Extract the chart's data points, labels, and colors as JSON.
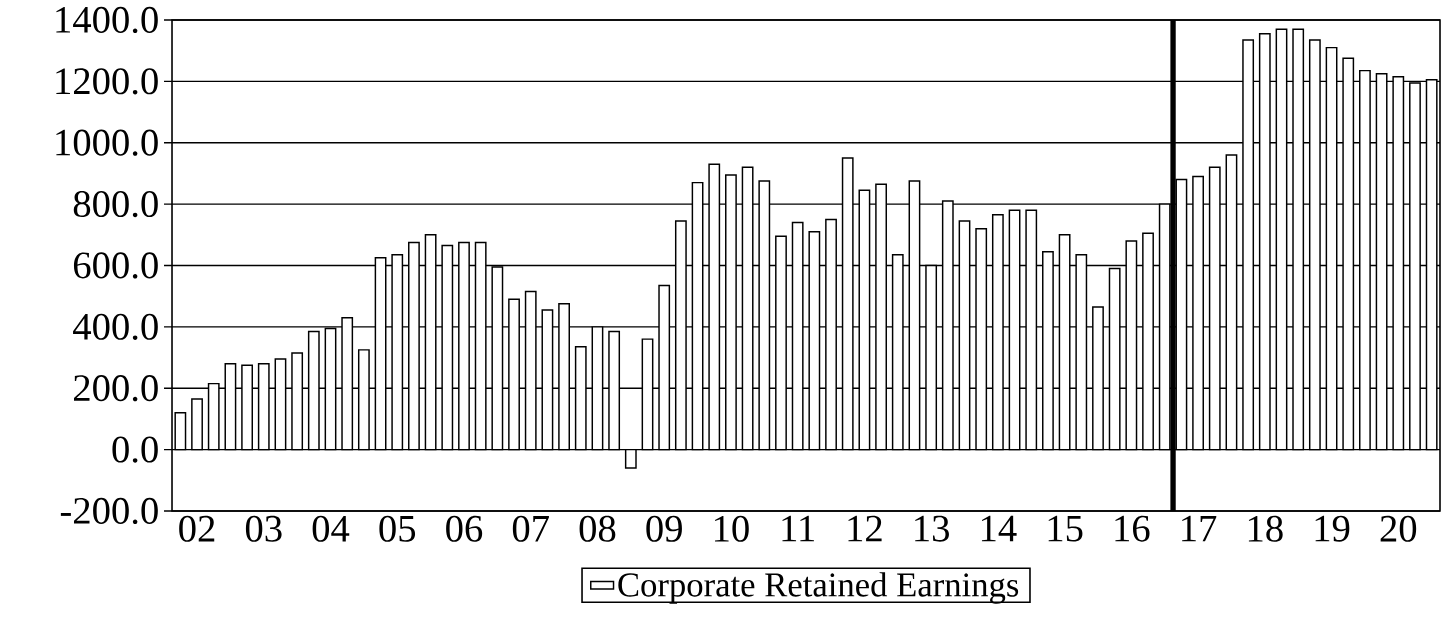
{
  "chart_data": {
    "type": "bar",
    "categories": [
      null,
      "02",
      null,
      null,
      null,
      "03",
      null,
      null,
      null,
      "04",
      null,
      null,
      null,
      "05",
      null,
      null,
      null,
      "06",
      null,
      null,
      null,
      "07",
      null,
      null,
      null,
      "08",
      null,
      null,
      null,
      "09",
      null,
      null,
      null,
      "10",
      null,
      null,
      null,
      "11",
      null,
      null,
      null,
      "12",
      null,
      null,
      null,
      "13",
      null,
      null,
      null,
      "14",
      null,
      null,
      null,
      "15",
      null,
      null,
      null,
      "16",
      null,
      null,
      null,
      "17",
      null,
      null,
      null,
      "18",
      null,
      null,
      null,
      "19",
      null,
      null,
      null,
      "20",
      null,
      null
    ],
    "series": [
      {
        "name": "Corporate Retained Earnings",
        "color": "#000000",
        "values": [
          120,
          165,
          215,
          280,
          275,
          280,
          295,
          315,
          385,
          395,
          430,
          325,
          625,
          635,
          675,
          700,
          665,
          675,
          675,
          595,
          490,
          515,
          455,
          475,
          335,
          400,
          385,
          -60,
          360,
          535,
          745,
          870,
          930,
          895,
          920,
          875,
          695,
          740,
          710,
          750,
          950,
          845,
          865,
          635,
          875,
          600,
          810,
          745,
          720,
          765,
          780,
          780,
          645,
          700,
          635,
          465,
          590,
          680,
          705,
          800,
          880,
          890,
          920,
          960,
          1335,
          1355,
          1370,
          1370,
          1335,
          1310,
          1275,
          1235,
          1225,
          1215,
          1195,
          1205
        ]
      }
    ],
    "ylim": [
      -200,
      1400
    ],
    "yticks": [
      {
        "value": -200,
        "label": "-200.0"
      },
      {
        "value": 0,
        "label": "0.0"
      },
      {
        "value": 200,
        "label": "200.0"
      },
      {
        "value": 400,
        "label": "400.0"
      },
      {
        "value": 600,
        "label": "600.0"
      },
      {
        "value": 800,
        "label": "800.0"
      },
      {
        "value": 1000,
        "label": "1000.0"
      },
      {
        "value": 1200,
        "label": "1200.0"
      },
      {
        "value": 1400,
        "label": "1400.0"
      }
    ],
    "grid": "y",
    "legend": "bottom"
  }
}
